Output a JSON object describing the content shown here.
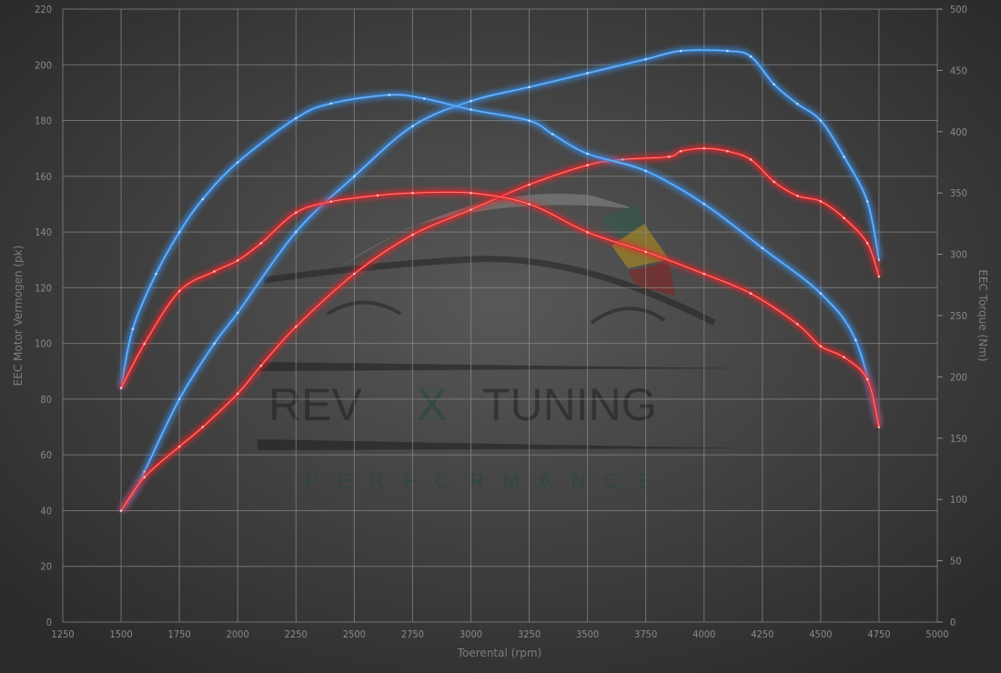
{
  "chart_data": {
    "type": "line",
    "xlabel": "Toerental (rpm)",
    "ylabel": "EEC Motor Vermogen (pk)",
    "y2label": "EEC Torque (Nm)",
    "xlim": [
      1250,
      5000
    ],
    "ylim": [
      0,
      220
    ],
    "y2lim": [
      0,
      500
    ],
    "xticks": [
      1250,
      1500,
      1750,
      2000,
      2250,
      2500,
      2750,
      3000,
      3250,
      3500,
      3750,
      4000,
      4250,
      4500,
      4750,
      5000
    ],
    "yticks": [
      0,
      20,
      40,
      60,
      80,
      100,
      120,
      140,
      160,
      180,
      200,
      220
    ],
    "y2ticks": [
      0,
      50,
      100,
      150,
      200,
      250,
      300,
      350,
      400,
      450,
      500
    ],
    "grid": true,
    "colors": {
      "tuned": "#3a8ee6",
      "stock": "#e8262a",
      "background": "#333333",
      "grid": "#8c8c8c"
    },
    "series": [
      {
        "axis": "left",
        "color": "tuned",
        "x": [
          1500,
          1550,
          1600,
          1750,
          1900,
          2000,
          2250,
          2500,
          2750,
          3000,
          3250,
          3500,
          3750,
          3900,
          4100,
          4200,
          4300,
          4400,
          4500,
          4600,
          4700,
          4750
        ],
        "y": [
          40,
          46,
          54,
          80,
          100,
          111,
          140,
          160,
          178,
          187,
          192,
          197,
          202,
          205,
          205,
          203,
          193,
          186,
          180,
          167,
          151,
          130
        ]
      },
      {
        "axis": "left",
        "color": "stock",
        "x": [
          1500,
          1600,
          1750,
          1850,
          2000,
          2100,
          2250,
          2500,
          2750,
          3000,
          3250,
          3500,
          3650,
          3850,
          3900,
          4000,
          4100,
          4200,
          4300,
          4400,
          4500,
          4600,
          4700,
          4750
        ],
        "y": [
          40,
          52,
          63,
          70,
          82,
          92,
          106,
          125,
          139,
          148,
          157,
          164,
          166,
          167,
          169,
          170,
          169,
          166,
          158,
          153,
          151,
          145,
          136,
          124
        ]
      },
      {
        "axis": "right",
        "color": "tuned",
        "x": [
          1500,
          1550,
          1650,
          1750,
          1850,
          2000,
          2250,
          2400,
          2650,
          2800,
          3000,
          3250,
          3350,
          3500,
          3750,
          4000,
          4250,
          4500,
          4650,
          4750
        ],
        "y": [
          191,
          239,
          284,
          318,
          345,
          375,
          411,
          423,
          430,
          427,
          418,
          409,
          398,
          382,
          368,
          341,
          305,
          268,
          230,
          161
        ]
      },
      {
        "axis": "right",
        "color": "stock",
        "x": [
          1500,
          1600,
          1750,
          1900,
          2000,
          2100,
          2250,
          2400,
          2600,
          2750,
          3000,
          3250,
          3500,
          3750,
          4000,
          4200,
          4400,
          4500,
          4600,
          4700,
          4750
        ],
        "y": [
          191,
          227,
          270,
          286,
          295,
          309,
          334,
          343,
          348,
          350,
          350,
          341,
          318,
          302,
          284,
          268,
          243,
          225,
          216,
          198,
          159
        ]
      }
    ]
  },
  "watermark": {
    "brand_left": "REV",
    "brand_mid": "X",
    "brand_right": "TUNING",
    "tagline": "PERFORMANCE"
  }
}
